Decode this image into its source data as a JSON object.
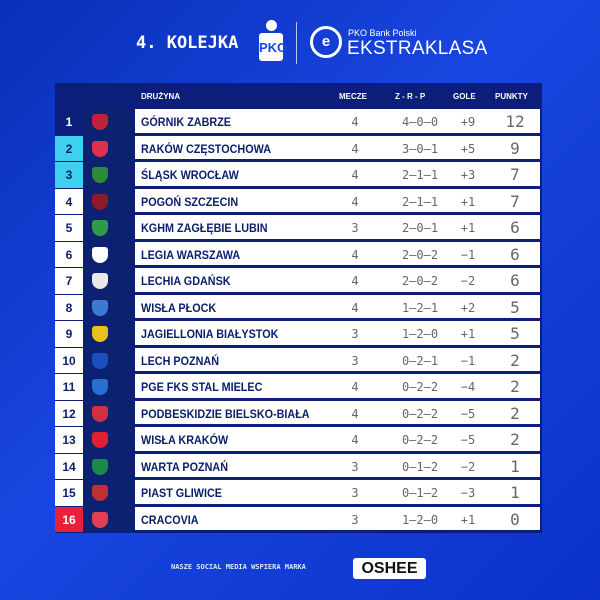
{
  "header": {
    "title": "4. KOLEJKA",
    "pko_logo": "PKO",
    "league_small": "PKO Bank Polski",
    "league_big": "EKSTRAKLASA"
  },
  "table": {
    "columns": {
      "team": "DRUŻYNA",
      "played": "MECZE",
      "wdl": "Z - R - P",
      "goals": "GOLE",
      "points": "PUNKTY"
    },
    "rows": [
      {
        "pos": "1",
        "team": "GÓRNIK ZABRZE",
        "played": "4",
        "wdl": "4–0–0",
        "goals": "+9",
        "points": "12",
        "zone": "navy",
        "crest": "#c0203a"
      },
      {
        "pos": "2",
        "team": "RAKÓW CZĘSTOCHOWA",
        "played": "4",
        "wdl": "3–0–1",
        "goals": "+5",
        "points": "9",
        "zone": "cyan",
        "crest": "#e0304a"
      },
      {
        "pos": "3",
        "team": "ŚLĄSK WROCŁAW",
        "played": "4",
        "wdl": "2–1–1",
        "goals": "+3",
        "points": "7",
        "zone": "cyan",
        "crest": "#2e8b3a"
      },
      {
        "pos": "4",
        "team": "POGOŃ SZCZECIN",
        "played": "4",
        "wdl": "2–1–1",
        "goals": "+1",
        "points": "7",
        "zone": "",
        "crest": "#8b1a2a"
      },
      {
        "pos": "5",
        "team": "KGHM ZAGŁĘBIE LUBIN",
        "played": "3",
        "wdl": "2–0–1",
        "goals": "+1",
        "points": "6",
        "zone": "",
        "crest": "#2e9a4a"
      },
      {
        "pos": "6",
        "team": "LEGIA WARSZAWA",
        "played": "4",
        "wdl": "2–0–2",
        "goals": "−1",
        "points": "6",
        "zone": "",
        "crest": "#ffffff"
      },
      {
        "pos": "7",
        "team": "LECHIA GDAŃSK",
        "played": "4",
        "wdl": "2–0–2",
        "goals": "−2",
        "points": "6",
        "zone": "",
        "crest": "#e8e8e8"
      },
      {
        "pos": "8",
        "team": "WISŁA PŁOCK",
        "played": "4",
        "wdl": "1–2–1",
        "goals": "+2",
        "points": "5",
        "zone": "",
        "crest": "#3a7ad0"
      },
      {
        "pos": "9",
        "team": "JAGIELLONIA BIAŁYSTOK",
        "played": "3",
        "wdl": "1–2–0",
        "goals": "+1",
        "points": "5",
        "zone": "",
        "crest": "#e8c020"
      },
      {
        "pos": "10",
        "team": "LECH POZNAŃ",
        "played": "3",
        "wdl": "0–2–1",
        "goals": "−1",
        "points": "2",
        "zone": "",
        "crest": "#1a50c0"
      },
      {
        "pos": "11",
        "team": "PGE FKS STAL MIELEC",
        "played": "4",
        "wdl": "0–2–2",
        "goals": "−4",
        "points": "2",
        "zone": "",
        "crest": "#2a70d0"
      },
      {
        "pos": "12",
        "team": "PODBESKIDZIE BIELSKO-BIAŁA",
        "played": "4",
        "wdl": "0–2–2",
        "goals": "−5",
        "points": "2",
        "zone": "",
        "crest": "#d03040"
      },
      {
        "pos": "13",
        "team": "WISŁA KRAKÓW",
        "played": "4",
        "wdl": "0–2–2",
        "goals": "−5",
        "points": "2",
        "zone": "",
        "crest": "#e02030"
      },
      {
        "pos": "14",
        "team": "WARTA POZNAŃ",
        "played": "3",
        "wdl": "0–1–2",
        "goals": "−2",
        "points": "1",
        "zone": "",
        "crest": "#1a8a4a"
      },
      {
        "pos": "15",
        "team": "PIAST GLIWICE",
        "played": "3",
        "wdl": "0–1–2",
        "goals": "−3",
        "points": "1",
        "zone": "",
        "crest": "#c03030"
      },
      {
        "pos": "16",
        "team": "CRACOVIA",
        "played": "3",
        "wdl": "1–2–0",
        "goals": "+1",
        "points": "0",
        "zone": "red",
        "crest": "#e04050"
      }
    ]
  },
  "footer": {
    "text": "NASZE SOCIAL MEDIA WSPIERA MARKA",
    "sponsor": "OSHEE"
  }
}
